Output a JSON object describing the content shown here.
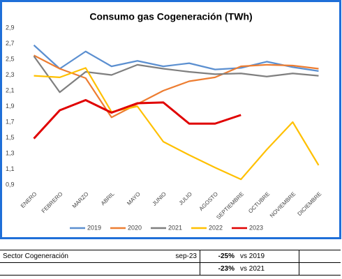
{
  "chart_data": {
    "type": "line",
    "title": "Consumo gas Cogeneración (TWh)",
    "categories": [
      "ENERO",
      "FEBRERO",
      "MARZO",
      "ABRIL",
      "MAYO",
      "JUNIO",
      "JULIO",
      "AGOSTO",
      "SEPTIEMBRE",
      "OCTUBRE",
      "NOVIEMBRE",
      "DICIEMBRE"
    ],
    "series": [
      {
        "name": "2019",
        "color": "#5b8fd0",
        "values": [
          2.68,
          2.38,
          2.6,
          2.41,
          2.48,
          2.41,
          2.45,
          2.37,
          2.39,
          2.47,
          2.4,
          2.35
        ]
      },
      {
        "name": "2020",
        "color": "#ed7d31",
        "values": [
          2.55,
          2.38,
          2.26,
          1.76,
          1.93,
          2.1,
          2.22,
          2.27,
          2.41,
          2.43,
          2.42,
          2.38
        ]
      },
      {
        "name": "2021",
        "color": "#7f7f7f",
        "values": [
          2.54,
          2.08,
          2.34,
          2.3,
          2.43,
          2.38,
          2.34,
          2.31,
          2.32,
          2.28,
          2.32,
          2.29
        ]
      },
      {
        "name": "2022",
        "color": "#ffc000",
        "values": [
          2.29,
          2.27,
          2.39,
          1.83,
          1.9,
          1.45,
          1.28,
          1.12,
          0.97,
          1.35,
          1.7,
          1.15
        ]
      },
      {
        "name": "2023",
        "color": "#e00000",
        "values": [
          1.49,
          1.85,
          1.98,
          1.82,
          1.94,
          1.95,
          1.68,
          1.68,
          1.79,
          null,
          null,
          null
        ]
      }
    ],
    "ylim": [
      0.9,
      2.9
    ],
    "yticks": [
      {
        "value": 0.9,
        "label": "0,9"
      },
      {
        "value": 1.1,
        "label": "1,1"
      },
      {
        "value": 1.3,
        "label": "1,3"
      },
      {
        "value": 1.5,
        "label": "1,5"
      },
      {
        "value": 1.7,
        "label": "1,7"
      },
      {
        "value": 1.9,
        "label": "1,9"
      },
      {
        "value": 2.1,
        "label": "2,1"
      },
      {
        "value": 2.3,
        "label": "2,3"
      },
      {
        "value": 2.5,
        "label": "2,5"
      },
      {
        "value": 2.7,
        "label": "2,7"
      },
      {
        "value": 2.9,
        "label": "2,9"
      }
    ],
    "grid": false,
    "legend": "bottom"
  },
  "table": {
    "label": "Sector Cogeneración",
    "period": "sep-23",
    "comparisons": [
      {
        "value": "-25%",
        "ref": "vs 2019"
      },
      {
        "value": "-23%",
        "ref": "vs 2021"
      }
    ]
  }
}
